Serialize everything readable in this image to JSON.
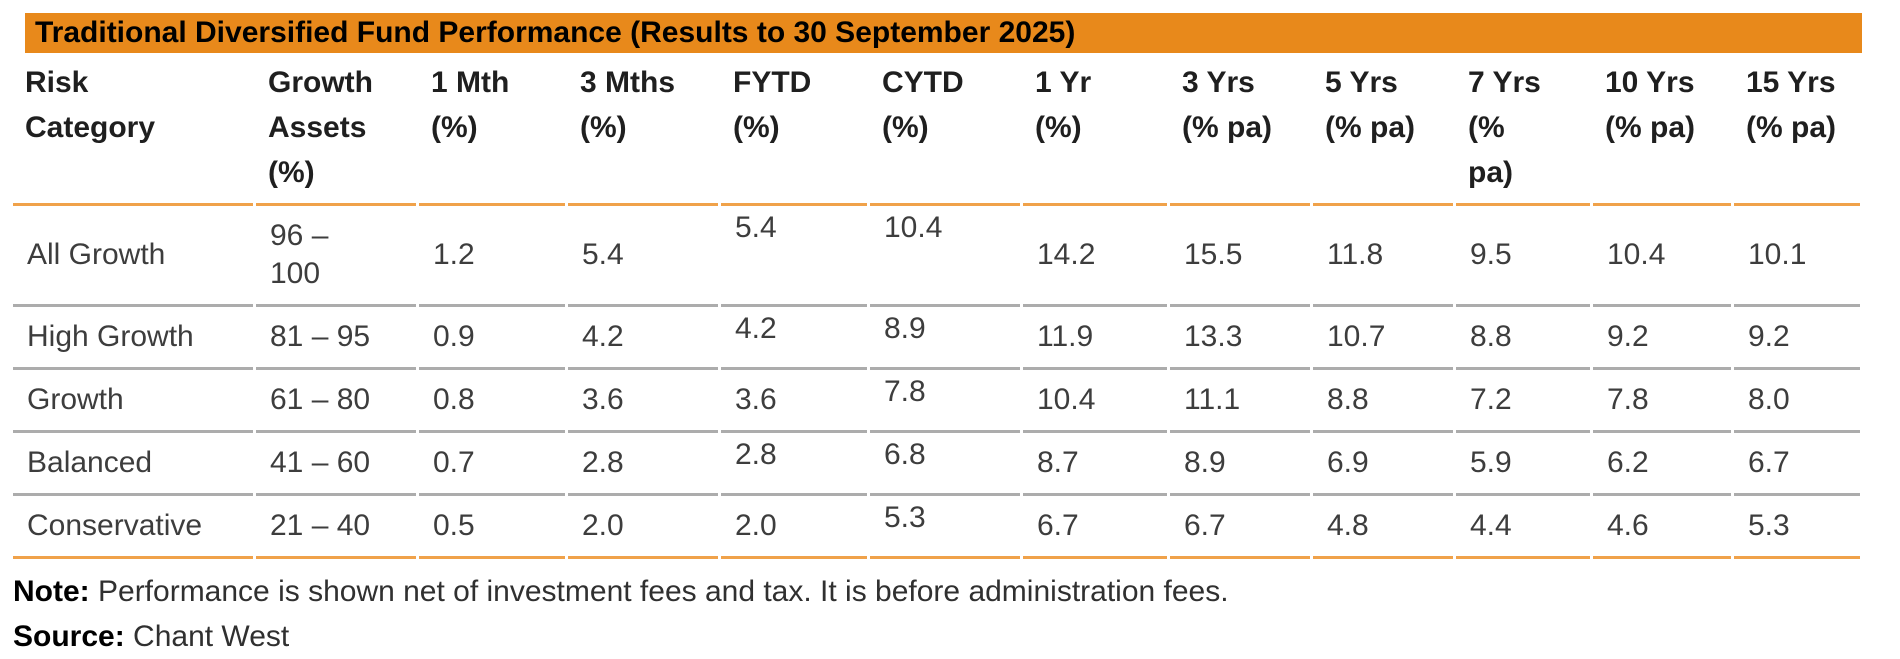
{
  "chart_data": {
    "type": "table",
    "title": "Traditional Diversified Fund Performance (Results to 30 September 2025)",
    "columns": [
      "Risk\nCategory",
      "Growth\nAssets\n(%)",
      "1 Mth\n(%)",
      "3 Mths\n(%)",
      "FYTD\n(%)",
      "CYTD\n(%)",
      "1 Yr\n(%)",
      "3 Yrs\n(% pa)",
      "5 Yrs\n(% pa)",
      "7 Yrs\n(%\npa)",
      "10 Yrs\n(% pa)",
      "15 Yrs\n(% pa)"
    ],
    "rows": [
      {
        "category": "All Growth",
        "values": [
          "96 –\n100",
          "1.2",
          "5.4",
          "5.4",
          "10.4",
          "14.2",
          "15.5",
          "11.8",
          "9.5",
          "10.4",
          "10.1"
        ],
        "raised": [
          3,
          4
        ]
      },
      {
        "category": "High Growth",
        "values": [
          "81 – 95",
          "0.9",
          "4.2",
          "4.2",
          "8.9",
          "11.9",
          "13.3",
          "10.7",
          "8.8",
          "9.2",
          "9.2"
        ],
        "raised": [
          3,
          4
        ]
      },
      {
        "category": "Growth",
        "values": [
          "61 – 80",
          "0.8",
          "3.6",
          "3.6",
          "7.8",
          "10.4",
          "11.1",
          "8.8",
          "7.2",
          "7.8",
          "8.0"
        ],
        "raised": [
          4
        ]
      },
      {
        "category": "Balanced",
        "values": [
          "41 – 60",
          "0.7",
          "2.8",
          "2.8",
          "6.8",
          "8.7",
          "8.9",
          "6.9",
          "5.9",
          "6.2",
          "6.7"
        ],
        "raised": [
          3,
          4
        ]
      },
      {
        "category": "Conservative",
        "values": [
          "21 – 40",
          "0.5",
          "2.0",
          "2.0",
          "5.3",
          "6.7",
          "6.7",
          "4.8",
          "4.4",
          "4.6",
          "5.3"
        ],
        "raised": [
          4
        ]
      }
    ]
  },
  "footer": {
    "note_label": "Note:",
    "note_text": "Performance is shown net of investment fees and tax. It is before administration fees.",
    "source_label": "Source:",
    "source_text": "Chant West"
  },
  "colors": {
    "header_bar": "#e8891b",
    "rule_orange": "#f0a24a",
    "rule_gray": "#acacac",
    "title_text": "#000000",
    "header_text": "#1f1f1f",
    "body_text": "#3d3d3d"
  }
}
